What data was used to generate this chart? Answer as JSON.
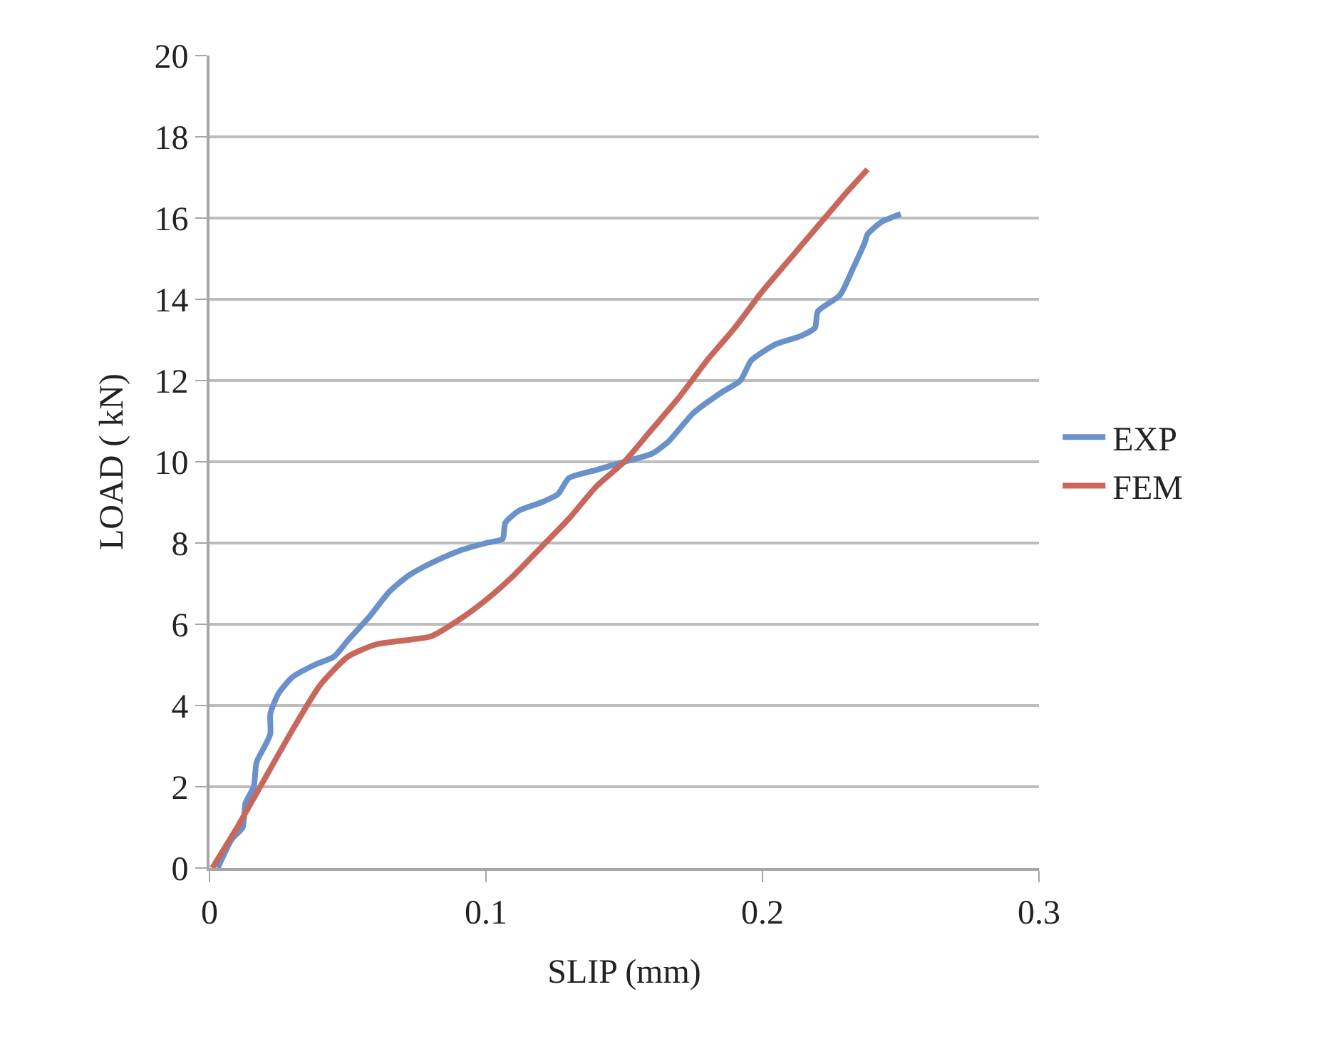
{
  "chart_data": {
    "type": "line",
    "xlabel": "SLIP (mm)",
    "ylabel": "LOAD ( kN)",
    "xlim": [
      0,
      0.3
    ],
    "xticks": [
      0,
      0.1,
      0.2,
      0.3
    ],
    "ylim": [
      0,
      20
    ],
    "yticks": [
      0,
      2,
      4,
      6,
      8,
      10,
      12,
      14,
      16,
      18,
      20
    ],
    "grid": "y",
    "legend": "right",
    "marker": "none",
    "line_style": "solid",
    "series": [
      {
        "name": "EXP",
        "color": "#6a91c9",
        "x": [
          0.003,
          0.008,
          0.012,
          0.013,
          0.016,
          0.017,
          0.02,
          0.022,
          0.022,
          0.025,
          0.03,
          0.038,
          0.045,
          0.05,
          0.058,
          0.065,
          0.072,
          0.08,
          0.09,
          0.1,
          0.106,
          0.107,
          0.112,
          0.12,
          0.126,
          0.13,
          0.14,
          0.15,
          0.16,
          0.166,
          0.175,
          0.185,
          0.192,
          0.196,
          0.205,
          0.214,
          0.219,
          0.22,
          0.228,
          0.233,
          0.237,
          0.238,
          0.243,
          0.25
        ],
        "values": [
          0,
          0.7,
          1.0,
          1.6,
          2.0,
          2.6,
          3.0,
          3.3,
          3.8,
          4.3,
          4.7,
          5.0,
          5.2,
          5.6,
          6.2,
          6.8,
          7.2,
          7.5,
          7.8,
          8.0,
          8.1,
          8.5,
          8.8,
          9.0,
          9.2,
          9.6,
          9.8,
          10.0,
          10.2,
          10.5,
          11.2,
          11.7,
          12.0,
          12.5,
          12.9,
          13.1,
          13.3,
          13.7,
          14.1,
          14.8,
          15.4,
          15.6,
          15.9,
          16.1
        ]
      },
      {
        "name": "FEM",
        "color": "#c8675c",
        "x": [
          0.001,
          0.01,
          0.02,
          0.03,
          0.04,
          0.05,
          0.06,
          0.07,
          0.08,
          0.09,
          0.1,
          0.11,
          0.12,
          0.13,
          0.14,
          0.15,
          0.16,
          0.17,
          0.18,
          0.19,
          0.2,
          0.21,
          0.22,
          0.23,
          0.238
        ],
        "values": [
          0,
          1.0,
          2.2,
          3.4,
          4.5,
          5.2,
          5.5,
          5.6,
          5.7,
          6.1,
          6.6,
          7.2,
          7.9,
          8.6,
          9.4,
          10.0,
          10.8,
          11.6,
          12.5,
          13.3,
          14.2,
          15.0,
          15.8,
          16.6,
          17.2
        ]
      }
    ]
  }
}
